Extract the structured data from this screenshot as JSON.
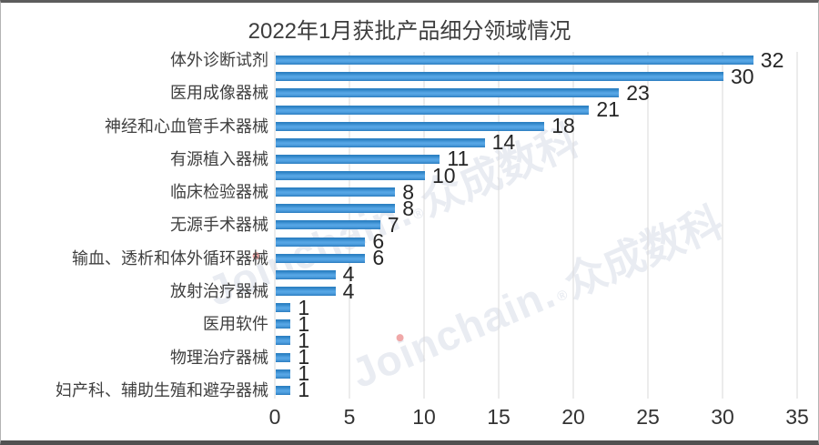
{
  "chart_data": {
    "type": "bar",
    "orientation": "horizontal-bars",
    "title": "2022年1月获批产品细分领域情况",
    "row_order": "top-to-bottom",
    "categories": [
      "体外诊断试剂",
      "",
      "医用成像器械",
      "",
      "神经和心血管手术器械",
      "",
      "有源植入器械",
      "",
      "临床检验器械",
      "",
      "无源手术器械",
      "",
      "输血、透析和体外循环器械",
      "",
      "放射治疗器械",
      "",
      "医用软件",
      "",
      "物理治疗器械",
      "",
      "妇产科、辅助生殖和避孕器械"
    ],
    "values": [
      32,
      30,
      23,
      21,
      18,
      14,
      11,
      10,
      8,
      8,
      7,
      6,
      6,
      4,
      4,
      1,
      1,
      1,
      1,
      1,
      1
    ],
    "data_labels_shown": true,
    "xlabel": "",
    "ylabel": "",
    "xlim": [
      0,
      35
    ],
    "x_ticks": [
      0,
      5,
      10,
      15,
      20,
      25,
      30,
      35
    ],
    "gridlines": "vertical",
    "legend": "none",
    "bar_color": "#3f93d2"
  },
  "watermark": {
    "full_text": "Joinchain.®众成数科",
    "part1": "Jo",
    "part_i": "i",
    "part2": "nchain.",
    "reg": "®",
    "cjk": "众成数科",
    "color": "#e9ecf2",
    "i_dot_color": "#f0a8a8",
    "count": 2
  },
  "colors": {
    "bar_blue": "#3f93d2",
    "bar_edge_blue": "#2c7dbf",
    "gridline": "#d9d9d9",
    "title_text": "#3d3d3d",
    "category_text": "#3f3f3f",
    "value_text": "#262626",
    "tick_text": "#333333",
    "frame_border_dark": "#5c5c5c",
    "frame_border_light": "#b3b3b3",
    "background": "#ffffff"
  }
}
